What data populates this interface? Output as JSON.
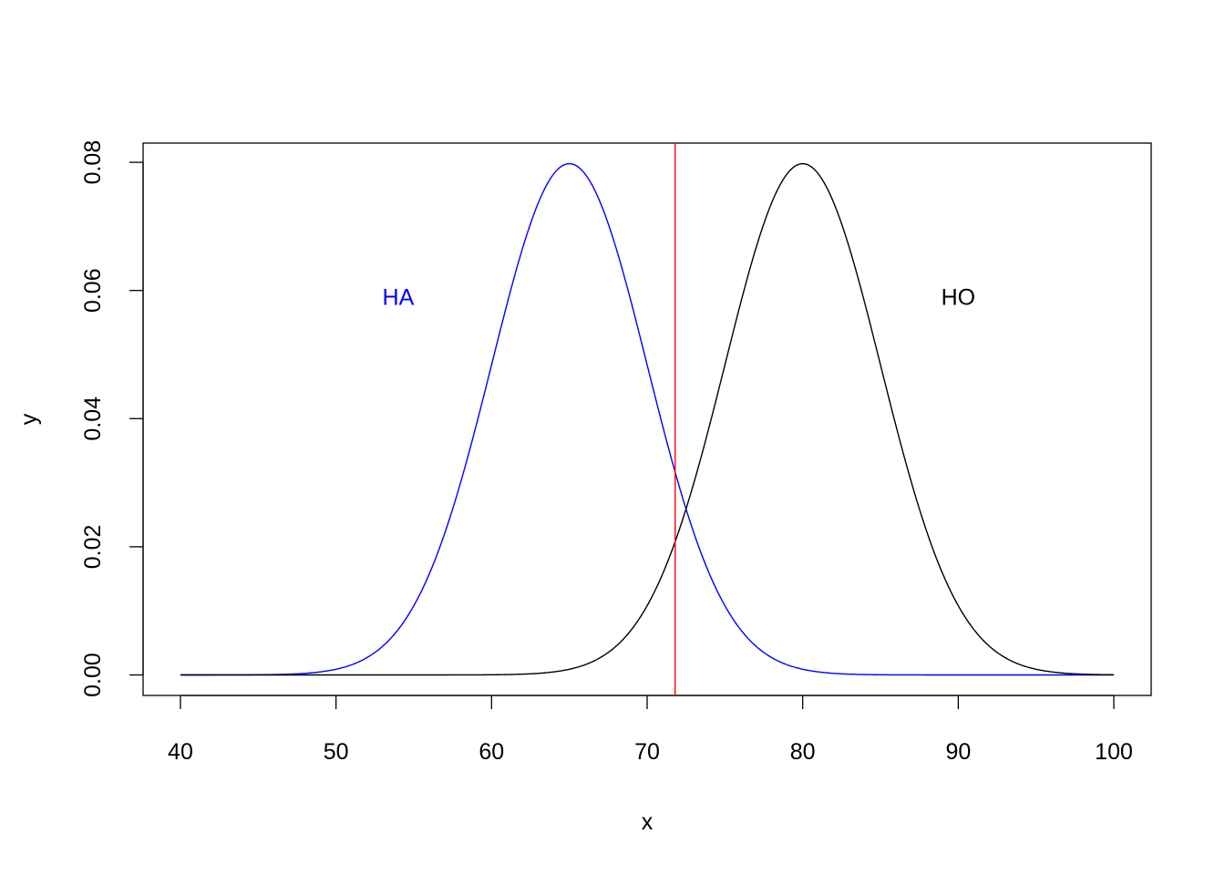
{
  "chart_data": {
    "type": "line",
    "title": "",
    "xlabel": "x",
    "ylabel": "y",
    "xlim": [
      37.6,
      102.4
    ],
    "ylim": [
      -0.0032,
      0.083
    ],
    "x_ticks": [
      "40",
      "50",
      "60",
      "70",
      "80",
      "90",
      "100"
    ],
    "y_ticks": [
      "0.00",
      "0.02",
      "0.04",
      "0.06",
      "0.08"
    ],
    "grid": false,
    "legend": "none",
    "series": [
      {
        "color": "#0000ff",
        "distribution": {
          "kind": "normal",
          "mean": 65,
          "sd": 5
        },
        "x_range": [
          40,
          100
        ]
      },
      {
        "color": "#000000",
        "distribution": {
          "kind": "normal",
          "mean": 80,
          "sd": 5
        },
        "x_range": [
          40,
          100
        ]
      }
    ],
    "vline": {
      "x": 71.8,
      "color": "#ff0000"
    },
    "annotations": [
      {
        "text": "HA",
        "x": 54,
        "y": 0.059,
        "color": "#0000ff"
      },
      {
        "text": "HO",
        "x": 90,
        "y": 0.059,
        "color": "#000000"
      }
    ]
  }
}
